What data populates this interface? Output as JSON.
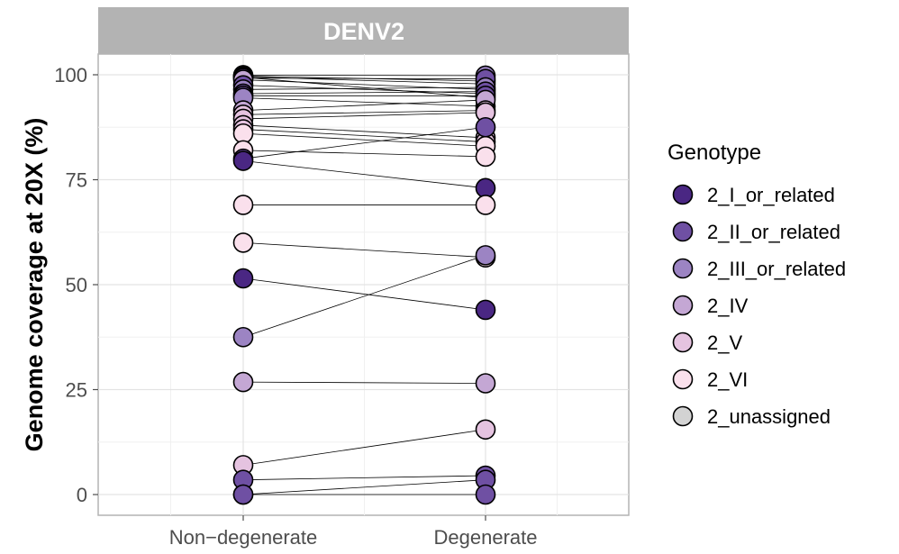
{
  "chart_data": {
    "type": "scatter",
    "facet_title": "DENV2",
    "ylabel": "Genome coverage at 20X (%)",
    "categories": [
      "Non−degenerate",
      "Degenerate"
    ],
    "ylim": [
      -5,
      112
    ],
    "yticks": [
      0,
      25,
      50,
      75,
      100
    ],
    "grid": true,
    "legend": {
      "title": "Genotype",
      "position": "right",
      "entries": [
        {
          "label": "2_I_or_related",
          "color": "#4a2783"
        },
        {
          "label": "2_II_or_related",
          "color": "#6f50a3"
        },
        {
          "label": "2_III_or_related",
          "color": "#9c84c3"
        },
        {
          "label": "2_IV",
          "color": "#c4a7d4"
        },
        {
          "label": "2_V",
          "color": "#e5c3e0"
        },
        {
          "label": "2_VI",
          "color": "#fae0ec"
        },
        {
          "label": "2_unassigned",
          "color": "#d3d3d3"
        }
      ]
    },
    "pairs": [
      {
        "genotype": "2_III_or_related",
        "values": [
          99.9,
          99.8
        ]
      },
      {
        "genotype": "2_II_or_related",
        "values": [
          99.7,
          98.5
        ]
      },
      {
        "genotype": "2_III_or_related",
        "values": [
          99.5,
          97.8
        ]
      },
      {
        "genotype": "2_IV",
        "values": [
          99.4,
          94.5
        ]
      },
      {
        "genotype": "2_II_or_related",
        "values": [
          99.2,
          99.0
        ]
      },
      {
        "genotype": "2_IV",
        "values": [
          98.8,
          96.5
        ]
      },
      {
        "genotype": "2_II_or_related",
        "values": [
          97.5,
          95.5
        ]
      },
      {
        "genotype": "2_III_or_related",
        "values": [
          96.5,
          97.0
        ]
      },
      {
        "genotype": "2_II_or_related",
        "values": [
          95.5,
          96.0
        ]
      },
      {
        "genotype": "2_II_or_related",
        "values": [
          95.0,
          95.0
        ]
      },
      {
        "genotype": "2_III_or_related",
        "values": [
          94.5,
          92.5
        ]
      },
      {
        "genotype": "2_IV",
        "values": [
          91.5,
          94.0
        ]
      },
      {
        "genotype": "2_V",
        "values": [
          90.5,
          91.5
        ]
      },
      {
        "genotype": "2_V",
        "values": [
          89.5,
          91.0
        ]
      },
      {
        "genotype": "2_V",
        "values": [
          88.0,
          85.0
        ]
      },
      {
        "genotype": "2_V",
        "values": [
          87.0,
          84.0
        ]
      },
      {
        "genotype": "2_VI",
        "values": [
          86.0,
          83.0
        ]
      },
      {
        "genotype": "2_VI",
        "values": [
          82.0,
          80.5
        ]
      },
      {
        "genotype": "2_II_or_related",
        "values": [
          80.0,
          87.5
        ]
      },
      {
        "genotype": "2_I_or_related",
        "values": [
          79.5,
          73.0
        ]
      },
      {
        "genotype": "2_VI",
        "values": [
          69.0,
          69.0
        ]
      },
      {
        "genotype": "2_VI",
        "values": [
          60.0,
          56.5
        ]
      },
      {
        "genotype": "2_I_or_related",
        "values": [
          51.5,
          44.0
        ]
      },
      {
        "genotype": "2_III_or_related",
        "values": [
          37.5,
          57.0
        ]
      },
      {
        "genotype": "2_IV",
        "values": [
          26.8,
          26.5
        ]
      },
      {
        "genotype": "2_V",
        "values": [
          7.0,
          15.5
        ]
      },
      {
        "genotype": "2_II_or_related",
        "values": [
          3.5,
          4.5
        ]
      },
      {
        "genotype": "2_II_or_related",
        "values": [
          0.0,
          3.5
        ]
      },
      {
        "genotype": "2_II_or_related",
        "values": [
          0.0,
          0.0
        ]
      }
    ]
  }
}
